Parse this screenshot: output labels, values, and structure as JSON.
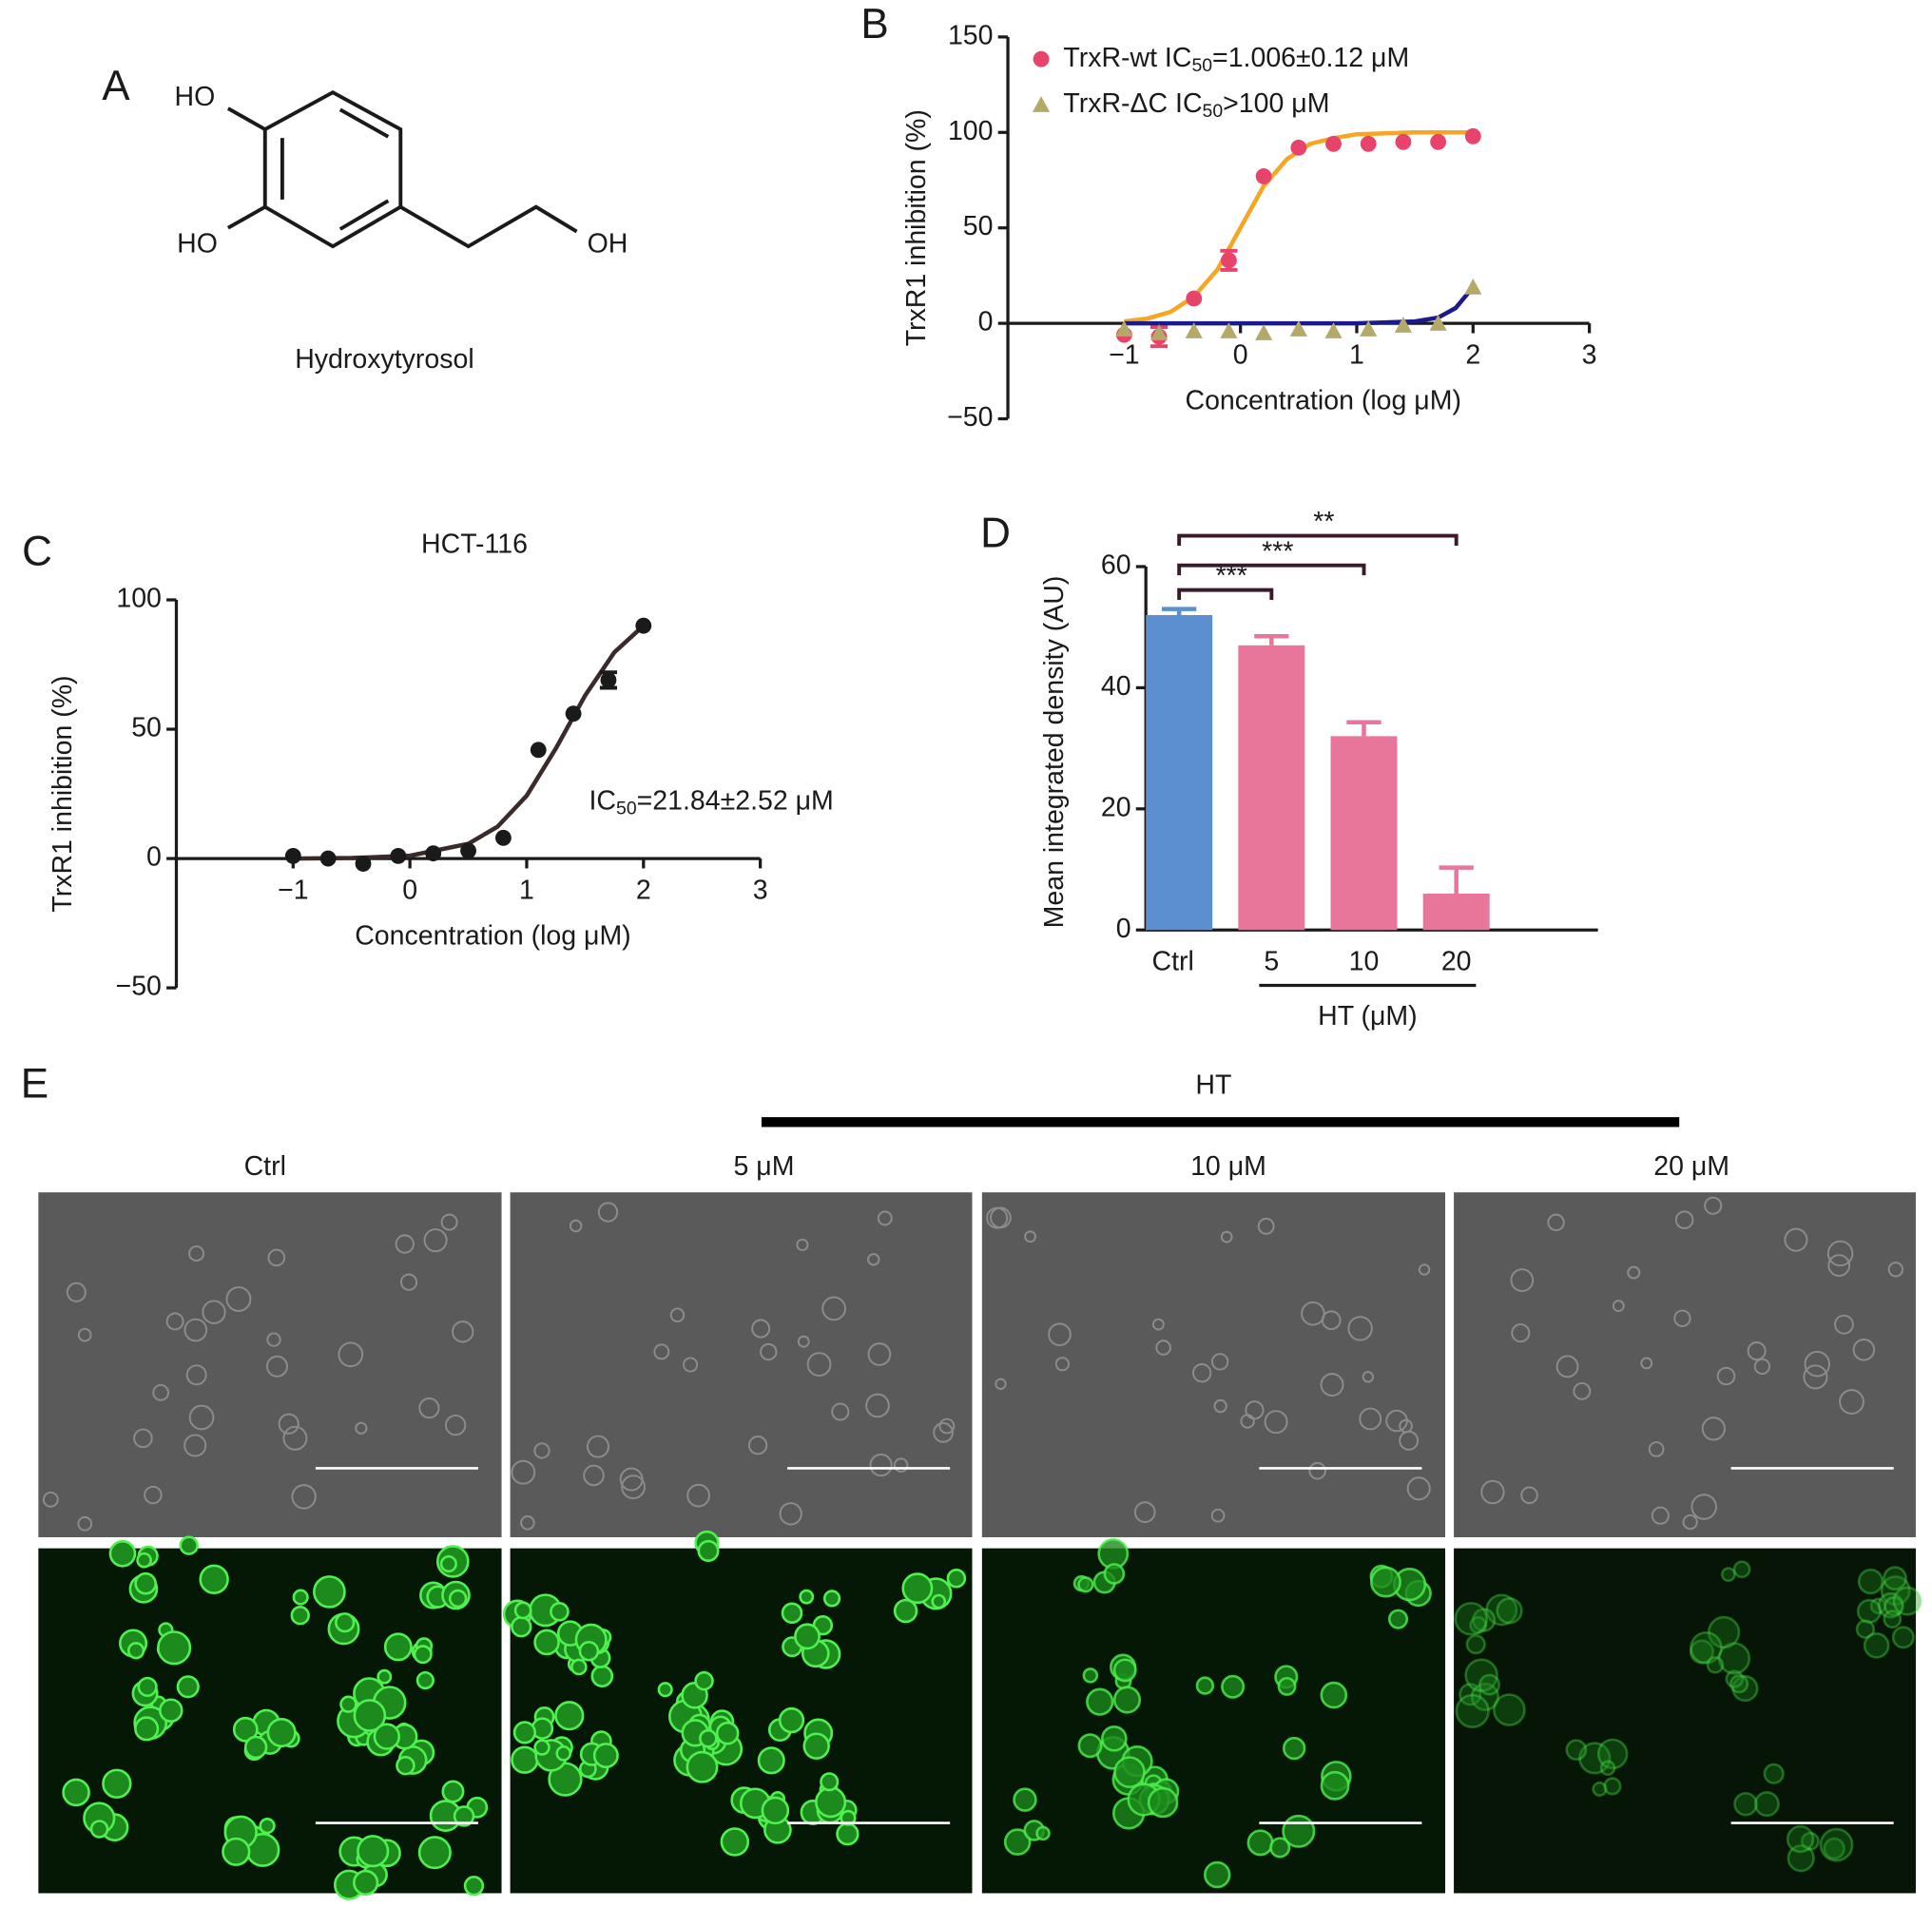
{
  "panel_a": {
    "label": "A",
    "groups": [
      "HO",
      "HO",
      "OH"
    ],
    "name": "Hydroxytyrosol"
  },
  "chart_data": [
    {
      "panel_label": "B",
      "type": "scatter",
      "xlabel": "Concentration (log μM)",
      "ylabel": "TrxR1 inhibition (%)",
      "xlim": [
        -2,
        3
      ],
      "ylim": [
        -50,
        150
      ],
      "xticks": [
        {
          "value": -1,
          "label": "−1"
        },
        0,
        1,
        2,
        3
      ],
      "yticks": [
        {
          "value": -50,
          "label": "−50"
        },
        0,
        50,
        100,
        150
      ],
      "legend": "upper left",
      "series": [
        {
          "name": "TrxR-wt IC50=1.006±0.12 μM",
          "color": "#e8436a",
          "marker": "circle",
          "x": [
            -1,
            -0.7,
            -0.4,
            -0.1,
            0.2,
            0.5,
            0.8,
            1.1,
            1.4,
            1.7,
            2
          ],
          "values": [
            -6,
            -7,
            13,
            33,
            77,
            92,
            94,
            94,
            95,
            95,
            98
          ],
          "errors": [
            null,
            5,
            null,
            5,
            null,
            null,
            null,
            null,
            null,
            null,
            null
          ],
          "fit": {
            "color": "#f5a623",
            "x": [
              -1,
              -0.8,
              -0.6,
              -0.4,
              -0.2,
              0,
              0.2,
              0.4,
              0.6,
              0.8,
              1,
              1.5,
              2
            ],
            "values": [
              1,
              2.5,
              6,
              14,
              28,
              50,
              72,
              86,
              94,
              97,
              99,
              100,
              100
            ]
          }
        },
        {
          "name": "TrxR-ΔC IC50>100 μM",
          "color": "#b5a96a",
          "marker": "triangle",
          "x": [
            -1,
            -0.7,
            -0.4,
            -0.1,
            0.2,
            0.5,
            0.8,
            1.1,
            1.4,
            1.7,
            2
          ],
          "values": [
            -3,
            -5,
            -4,
            -4,
            -5,
            -3,
            -4,
            -3,
            -1,
            0,
            19
          ],
          "fit": {
            "color": "#1a1a8c",
            "x": [
              -1,
              0,
              1,
              1.5,
              1.7,
              1.85,
              2
            ],
            "values": [
              0,
              0,
              0,
              1,
              3,
              8,
              19
            ]
          }
        }
      ]
    },
    {
      "panel_label": "C",
      "type": "scatter",
      "title": "HCT-116",
      "annotation": "IC50=21.84±2.52 μM",
      "xlabel": "Concentration (log μM)",
      "ylabel": "TrxR1 inhibition (%)",
      "xlim": [
        -2,
        3
      ],
      "ylim": [
        -50,
        100
      ],
      "xticks": [
        {
          "value": -1,
          "label": "−1"
        },
        0,
        1,
        2,
        3
      ],
      "yticks": [
        {
          "value": -50,
          "label": "−50"
        },
        0,
        50,
        100
      ],
      "series": [
        {
          "color": "#1a1a1a",
          "marker": "circle",
          "x": [
            -1,
            -0.7,
            -0.4,
            -0.1,
            0.2,
            0.5,
            0.8,
            1.1,
            1.4,
            1.7,
            2
          ],
          "values": [
            1,
            0,
            -2,
            1,
            2,
            3,
            8,
            42,
            56,
            69,
            90
          ],
          "errors": [
            null,
            null,
            null,
            null,
            null,
            null,
            null,
            null,
            null,
            3,
            null
          ],
          "fit": {
            "color": "#3a2a2a",
            "x": [
              -1,
              -0.5,
              0,
              0.5,
              0.75,
              1,
              1.25,
              1.5,
              1.75,
              2
            ],
            "values": [
              0,
              0.2,
              1.1,
              5.7,
              12.3,
              24.3,
              42.6,
              63,
              79.7,
              90
            ]
          }
        }
      ]
    },
    {
      "panel_label": "D",
      "type": "bar",
      "ylabel": "Mean integrated density (AU)",
      "categories": [
        "Ctrl",
        "5",
        "10",
        "20"
      ],
      "values": [
        52,
        47,
        32,
        6
      ],
      "errors": [
        1,
        1.5,
        2.3,
        4.3
      ],
      "colors": [
        "#5b8fd0",
        "#e8769a",
        "#e8769a",
        "#e8769a"
      ],
      "ylim": [
        0,
        60
      ],
      "yticks": [
        0,
        20,
        40,
        60
      ],
      "group_label": "HT (μM)",
      "annotations": [
        "***",
        "***",
        "**"
      ]
    }
  ],
  "panel_e": {
    "label": "E",
    "group_label": "HT",
    "columns": [
      "Ctrl",
      "5 μM",
      "10 μM",
      "20 μM"
    ]
  }
}
